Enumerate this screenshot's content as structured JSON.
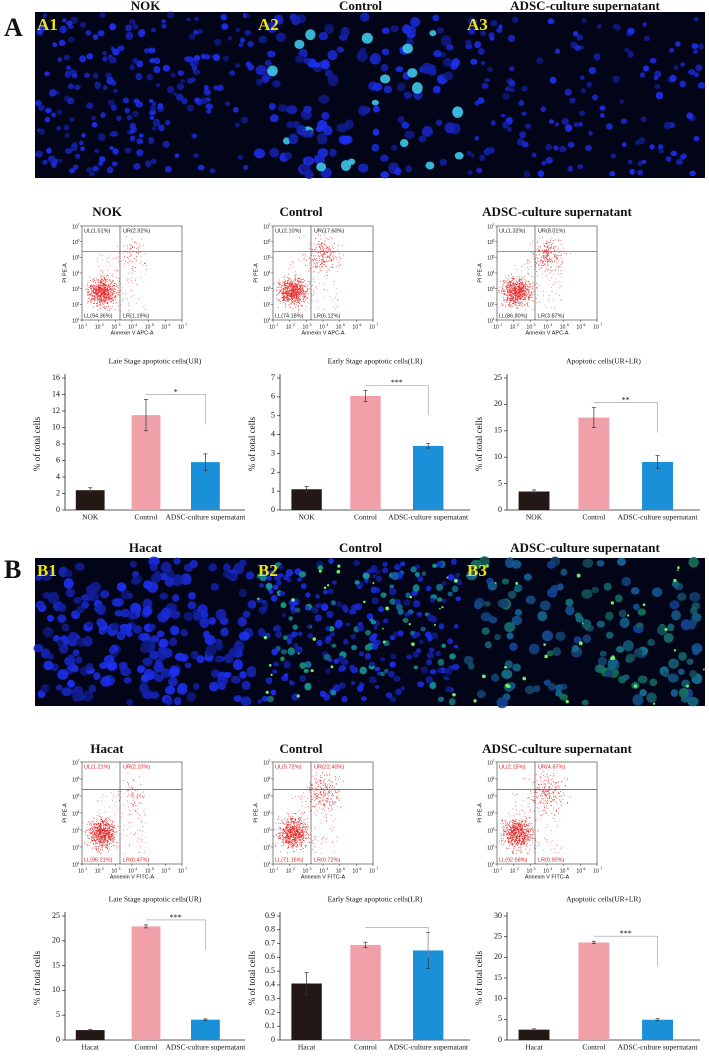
{
  "panels": [
    {
      "label": "A",
      "images": [
        {
          "label": "A1",
          "title": "NOK"
        },
        {
          "label": "A2",
          "title": "Control"
        },
        {
          "label": "A3",
          "title": "ADSC-culture supernatant"
        }
      ],
      "flow": {
        "y_label": "PI PE-A",
        "x_label": "Annexin V APC-A",
        "tick_base": "10",
        "ticks": [
          1,
          2,
          3,
          4,
          5,
          6,
          7
        ],
        "text_color": "#222222",
        "plots": [
          {
            "title": "NOK",
            "UL": "UL(1.51%)",
            "UR": "UR(2.92%)",
            "LL": "LL(94.36%)",
            "LR": "LR(1.19%)"
          },
          {
            "title": "Control",
            "UL": "UL(2.10%)",
            "UR": "UR(17.60%)",
            "LL": "LL(74.18%)",
            "LR": "LR(6.12%)"
          },
          {
            "title": "ADSC-culture supernatant",
            "UL": "UL(1.32%)",
            "UR": "UR(8.01%)",
            "LL": "LL(86.80%)",
            "LR": "LR(3.87%)"
          }
        ]
      }
    },
    {
      "label": "B",
      "images": [
        {
          "label": "B1",
          "title": "Hacat"
        },
        {
          "label": "B2",
          "title": "Control"
        },
        {
          "label": "B3",
          "title": "ADSC-culture supernatant"
        }
      ],
      "flow": {
        "y_label": "PI PE-A",
        "x_label": "Annexin V FITC-A",
        "tick_base": "10",
        "ticks": [
          1,
          2,
          3,
          4,
          5,
          6,
          7
        ],
        "text_color": "#e02020",
        "plots": [
          {
            "title": "Hacat",
            "UL": "UL(1.21%)",
            "UR": "UR(2.10%)",
            "LL": "LL(96.21%)",
            "LR": "LR(0.47%)"
          },
          {
            "title": "Control",
            "UL": "UL(5.72%)",
            "UR": "UR(22.40%)",
            "LL": "LL(71.16%)",
            "LR": "LR(0.72%)"
          },
          {
            "title": "ADSC-culture supernatant",
            "UL": "UL(2.15%)",
            "UR": "UR(4.37%)",
            "LL": "LL(92.58%)",
            "LR": "LR(0.90%)"
          }
        ]
      }
    }
  ],
  "chart_data": [
    {
      "type": "bar",
      "title": "Late Stage apoptotic cells(UR)",
      "y_label": "% of total cells",
      "categories": [
        "NOK",
        "Control",
        "ADSC-culture supernatant"
      ],
      "values": [
        2.4,
        11.5,
        5.8
      ],
      "errors": [
        0.3,
        1.9,
        1.0
      ],
      "colors": [
        "#231815",
        "#f0a0a8",
        "#1a90d8"
      ],
      "ylim": [
        0,
        16
      ],
      "yticks": [
        0,
        2,
        4,
        6,
        8,
        10,
        12,
        14,
        16
      ],
      "significance": "*"
    },
    {
      "type": "bar",
      "title": "Early Stage apoptotic cells(LR)",
      "y_label": "% of total cells",
      "categories": [
        "NOK",
        "Control",
        "ADSC-culture supernatant"
      ],
      "values": [
        1.1,
        6.05,
        3.4
      ],
      "errors": [
        0.15,
        0.3,
        0.12
      ],
      "colors": [
        "#231815",
        "#f0a0a8",
        "#1a90d8"
      ],
      "ylim": [
        0,
        7
      ],
      "yticks": [
        0,
        1,
        2,
        3,
        4,
        5,
        6,
        7
      ],
      "significance": "***"
    },
    {
      "type": "bar",
      "title": "Apoptotic cells(UR+LR)",
      "y_label": "% of total cells",
      "categories": [
        "NOK",
        "Control",
        "ADSC-culture supernatant"
      ],
      "values": [
        3.5,
        17.5,
        9.1
      ],
      "errors": [
        0.3,
        1.9,
        1.2
      ],
      "colors": [
        "#231815",
        "#f0a0a8",
        "#1a90d8"
      ],
      "ylim": [
        0,
        25
      ],
      "yticks": [
        0,
        5,
        10,
        15,
        20,
        25
      ],
      "significance": "**"
    },
    {
      "type": "bar",
      "title": "Late Stage apoptotic cells(UR)",
      "y_label": "% of total cells",
      "categories": [
        "Hacat",
        "Control",
        "ADSC-culture supernatant"
      ],
      "values": [
        2.0,
        22.9,
        4.1
      ],
      "errors": [
        0.15,
        0.3,
        0.15
      ],
      "colors": [
        "#231815",
        "#f0a0a8",
        "#1a90d8"
      ],
      "ylim": [
        0,
        25
      ],
      "yticks": [
        0,
        5,
        10,
        15,
        20,
        25
      ],
      "significance": "***"
    },
    {
      "type": "bar",
      "title": "Early Stage apoptotic cells(LR)",
      "y_label": "% of total cells",
      "categories": [
        "Hacat",
        "Control",
        "ADSC-culture supernatant"
      ],
      "values": [
        0.41,
        0.69,
        0.65
      ],
      "errors": [
        0.08,
        0.02,
        0.13
      ],
      "colors": [
        "#231815",
        "#f0a0a8",
        "#1a90d8"
      ],
      "ylim": [
        0,
        0.9
      ],
      "yticks": [
        0,
        0.1,
        0.2,
        0.3,
        0.4,
        0.5,
        0.6,
        0.7,
        0.8,
        0.9
      ]
    },
    {
      "type": "bar",
      "title": "Apoptotic cells(UR+LR)",
      "y_label": "% of total cells",
      "categories": [
        "Hacat",
        "Control",
        "ADSC-culture supernatant"
      ],
      "values": [
        2.5,
        23.6,
        4.9
      ],
      "errors": [
        0.2,
        0.3,
        0.25
      ],
      "colors": [
        "#231815",
        "#f0a0a8",
        "#1a90d8"
      ],
      "ylim": [
        0,
        30
      ],
      "yticks": [
        0,
        5,
        10,
        15,
        20,
        25,
        30
      ],
      "significance": "***"
    }
  ]
}
